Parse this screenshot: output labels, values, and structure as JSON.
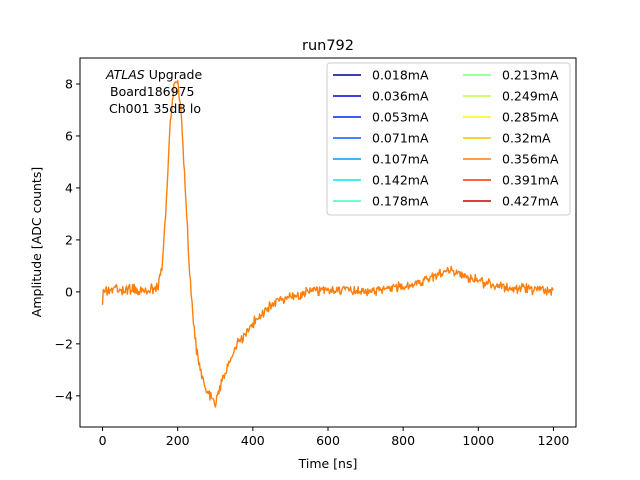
{
  "chart_data": {
    "type": "line",
    "title": "run792",
    "xlabel": "Time [ns]",
    "ylabel": "Amplitude [ADC counts]",
    "xlim": [
      -60,
      1260
    ],
    "ylim": [
      -5.2,
      9.0
    ],
    "xticks": [
      0,
      200,
      400,
      600,
      800,
      1000,
      1200
    ],
    "yticks": [
      -4,
      -2,
      0,
      2,
      4,
      6,
      8
    ],
    "xtick_labels": [
      "0",
      "200",
      "400",
      "600",
      "800",
      "1000",
      "1200"
    ],
    "ytick_labels": [
      "−4",
      "−2",
      "0",
      "2",
      "4",
      "6",
      "8"
    ],
    "annotation": {
      "line1_italic": "ATLAS",
      "line1_rest": " Upgrade",
      "line2": "Board186975",
      "line3": "Ch001 35dB lo"
    },
    "legend_position": "top-right",
    "legend_columns": 2,
    "series": [
      {
        "name": "0.018mA",
        "color": "#00008f"
      },
      {
        "name": "0.036mA",
        "color": "#0000d6"
      },
      {
        "name": "0.053mA",
        "color": "#0020ff"
      },
      {
        "name": "0.071mA",
        "color": "#0060ff"
      },
      {
        "name": "0.107mA",
        "color": "#00a0e6"
      },
      {
        "name": "0.142mA",
        "color": "#00e8f0"
      },
      {
        "name": "0.178mA",
        "color": "#40ffc0"
      },
      {
        "name": "0.213mA",
        "color": "#80ff80"
      },
      {
        "name": "0.249mA",
        "color": "#bfff40"
      },
      {
        "name": "0.285mA",
        "color": "#ffff00"
      },
      {
        "name": "0.32mA",
        "color": "#ffc000"
      },
      {
        "name": "0.356mA",
        "color": "#ff7f0e"
      },
      {
        "name": "0.391mA",
        "color": "#ff3000"
      },
      {
        "name": "0.427mA",
        "color": "#c80000"
      }
    ],
    "visible_series": "0.356mA",
    "pulse_x": [
      0,
      20,
      40,
      60,
      80,
      100,
      120,
      140,
      150,
      160,
      170,
      180,
      190,
      200,
      210,
      220,
      230,
      240,
      250,
      260,
      270,
      280,
      290,
      300,
      310,
      320,
      340,
      360,
      380,
      400,
      420,
      440,
      460,
      480,
      500,
      520,
      540,
      560,
      580,
      600,
      650,
      700,
      750,
      800,
      850,
      900,
      920,
      950,
      1000,
      1050,
      1100,
      1150,
      1200
    ],
    "pulse_y": [
      0,
      0.05,
      0.1,
      0.05,
      0.1,
      0,
      0.1,
      0.1,
      0.3,
      1.2,
      3.5,
      6.5,
      7.9,
      8.1,
      6.8,
      4.0,
      1.2,
      -0.8,
      -2.2,
      -3.0,
      -3.5,
      -3.9,
      -4.1,
      -4.3,
      -3.8,
      -3.4,
      -2.6,
      -2.0,
      -1.6,
      -1.2,
      -0.9,
      -0.6,
      -0.4,
      -0.3,
      -0.2,
      -0.15,
      -0.05,
      0.05,
      0.05,
      0.1,
      0.1,
      0.05,
      0.1,
      0.2,
      0.4,
      0.75,
      0.85,
      0.7,
      0.4,
      0.25,
      0.15,
      0.1,
      0.05
    ],
    "noise_amplitude": 0.15
  }
}
